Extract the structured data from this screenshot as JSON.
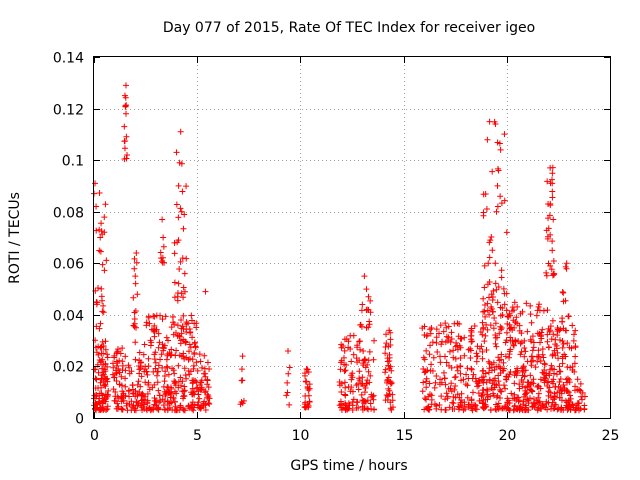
{
  "chart_data": {
    "type": "scatter",
    "title": "Day 077 of 2015, Rate Of TEC Index for receiver igeo",
    "xlabel": "GPS time / hours",
    "ylabel": "ROTI / TECUs",
    "xlim": [
      0,
      25
    ],
    "ylim": [
      0,
      0.14
    ],
    "x_ticks": [
      0,
      5,
      10,
      15,
      20,
      25
    ],
    "x_tick_labels": [
      "0",
      "5",
      "10",
      "15",
      "20",
      "25"
    ],
    "y_ticks": [
      0,
      0.02,
      0.04,
      0.06,
      0.08,
      0.1,
      0.12,
      0.14
    ],
    "y_tick_labels": [
      "0",
      "0.02",
      "0.04",
      "0.06",
      "0.08",
      "0.1",
      "0.12",
      "0.14"
    ],
    "grid": true,
    "marker": "+",
    "color": "#ff0000",
    "clusters": [
      {
        "x_range": [
          0.0,
          0.7
        ],
        "y_range": [
          0.003,
          0.025
        ],
        "n": 90
      },
      {
        "x_range": [
          0.0,
          0.6
        ],
        "y_range": [
          0.025,
          0.09
        ],
        "n": 40
      },
      {
        "x_range": [
          0.9,
          1.8
        ],
        "y_range": [
          0.003,
          0.03
        ],
        "n": 70
      },
      {
        "x_range": [
          1.45,
          1.6
        ],
        "y_range": [
          0.1,
          0.13
        ],
        "n": 10
      },
      {
        "x_range": [
          1.8,
          2.5
        ],
        "y_range": [
          0.003,
          0.03
        ],
        "n": 60
      },
      {
        "x_range": [
          1.9,
          2.1
        ],
        "y_range": [
          0.035,
          0.064
        ],
        "n": 12
      },
      {
        "x_range": [
          2.5,
          5.0
        ],
        "y_range": [
          0.003,
          0.04
        ],
        "n": 260
      },
      {
        "x_range": [
          3.2,
          3.4
        ],
        "y_range": [
          0.06,
          0.077
        ],
        "n": 6
      },
      {
        "x_range": [
          3.9,
          4.5
        ],
        "y_range": [
          0.045,
          0.11
        ],
        "n": 25
      },
      {
        "x_range": [
          5.0,
          5.6
        ],
        "y_range": [
          0.003,
          0.025
        ],
        "n": 50
      },
      {
        "x_range": [
          7.1,
          7.3
        ],
        "y_range": [
          0.005,
          0.024
        ],
        "n": 7
      },
      {
        "x_range": [
          9.3,
          9.5
        ],
        "y_range": [
          0.005,
          0.026
        ],
        "n": 6
      },
      {
        "x_range": [
          10.2,
          10.5
        ],
        "y_range": [
          0.004,
          0.019
        ],
        "n": 25
      },
      {
        "x_range": [
          11.9,
          12.6
        ],
        "y_range": [
          0.003,
          0.032
        ],
        "n": 60
      },
      {
        "x_range": [
          12.7,
          13.6
        ],
        "y_range": [
          0.003,
          0.03
        ],
        "n": 65
      },
      {
        "x_range": [
          12.9,
          13.4
        ],
        "y_range": [
          0.035,
          0.056
        ],
        "n": 12
      },
      {
        "x_range": [
          14.1,
          14.5
        ],
        "y_range": [
          0.003,
          0.034
        ],
        "n": 40
      },
      {
        "x_range": [
          15.9,
          19.0
        ],
        "y_range": [
          0.003,
          0.037
        ],
        "n": 220
      },
      {
        "x_range": [
          18.8,
          20.8
        ],
        "y_range": [
          0.003,
          0.045
        ],
        "n": 220
      },
      {
        "x_range": [
          18.8,
          20.0
        ],
        "y_range": [
          0.045,
          0.115
        ],
        "n": 40
      },
      {
        "x_range": [
          20.8,
          22.0
        ],
        "y_range": [
          0.003,
          0.045
        ],
        "n": 130
      },
      {
        "x_range": [
          21.9,
          22.3
        ],
        "y_range": [
          0.055,
          0.098
        ],
        "n": 25
      },
      {
        "x_range": [
          22.0,
          23.4
        ],
        "y_range": [
          0.003,
          0.04
        ],
        "n": 150
      },
      {
        "x_range": [
          22.7,
          22.9
        ],
        "y_range": [
          0.045,
          0.062
        ],
        "n": 6
      },
      {
        "x_range": [
          23.4,
          23.8
        ],
        "y_range": [
          0.003,
          0.016
        ],
        "n": 20
      }
    ],
    "series": [
      {
        "name": "ROTI",
        "points": [
          [
            1.55,
            0.129
          ],
          [
            1.5,
            0.125
          ],
          [
            1.52,
            0.121
          ],
          [
            1.55,
            0.118
          ],
          [
            1.6,
            0.102
          ],
          [
            4.2,
            0.111
          ],
          [
            4.0,
            0.103
          ],
          [
            4.15,
            0.099
          ],
          [
            4.1,
            0.09
          ],
          [
            4.25,
            0.08
          ],
          [
            0.05,
            0.091
          ],
          [
            0.0,
            0.087
          ],
          [
            0.1,
            0.082
          ],
          [
            0.25,
            0.073
          ],
          [
            0.3,
            0.07
          ],
          [
            3.3,
            0.077
          ],
          [
            3.35,
            0.07
          ],
          [
            3.25,
            0.062
          ],
          [
            19.45,
            0.114
          ],
          [
            19.7,
            0.104
          ],
          [
            19.6,
            0.096
          ],
          [
            19.55,
            0.09
          ],
          [
            19.5,
            0.08
          ],
          [
            20.0,
            0.072
          ],
          [
            19.2,
            0.069
          ],
          [
            19.1,
            0.06
          ],
          [
            22.1,
            0.097
          ],
          [
            22.2,
            0.091
          ],
          [
            22.0,
            0.083
          ],
          [
            22.25,
            0.077
          ],
          [
            22.1,
            0.071
          ],
          [
            22.2,
            0.065
          ],
          [
            22.1,
            0.059
          ],
          [
            22.9,
            0.06
          ],
          [
            13.1,
            0.055
          ],
          [
            13.2,
            0.05
          ],
          [
            13.0,
            0.044
          ],
          [
            13.3,
            0.047
          ],
          [
            13.4,
            0.041
          ],
          [
            2.05,
            0.064
          ],
          [
            2.0,
            0.055
          ],
          [
            2.1,
            0.048
          ],
          [
            7.2,
            0.024
          ],
          [
            9.4,
            0.026
          ],
          [
            10.3,
            0.019
          ],
          [
            14.3,
            0.034
          ],
          [
            16.8,
            0.036
          ],
          [
            5.4,
            0.049
          ],
          [
            4.4,
            0.056
          ],
          [
            4.3,
            0.062
          ]
        ]
      }
    ]
  }
}
